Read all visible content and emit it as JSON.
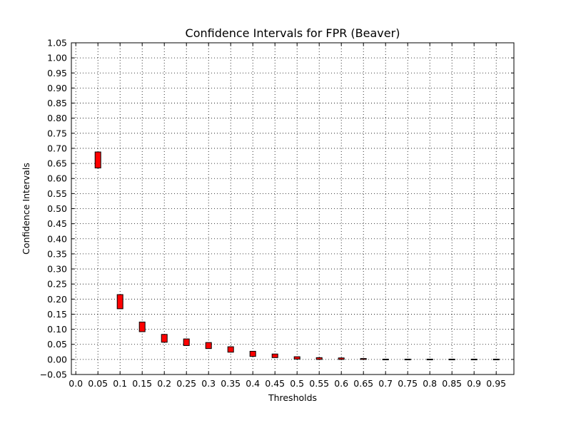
{
  "chart_data": {
    "type": "bar",
    "title": "Confidence Intervals for FPR (Beaver)",
    "xlabel": "Thresholds",
    "ylabel": "Confidence Intervals",
    "x_ticks": [
      "0.0",
      "0.05",
      "0.1",
      "0.15",
      "0.2",
      "0.25",
      "0.3",
      "0.35",
      "0.4",
      "0.45",
      "0.5",
      "0.55",
      "0.6",
      "0.65",
      "0.7",
      "0.75",
      "0.8",
      "0.85",
      "0.9",
      "0.95"
    ],
    "y_ticks": [
      "−0.05",
      "0.00",
      "0.05",
      "0.10",
      "0.15",
      "0.20",
      "0.25",
      "0.30",
      "0.35",
      "0.40",
      "0.45",
      "0.50",
      "0.55",
      "0.60",
      "0.65",
      "0.70",
      "0.75",
      "0.80",
      "0.85",
      "0.90",
      "0.95",
      "1.00",
      "1.05"
    ],
    "xlim": [
      -0.01,
      0.99
    ],
    "ylim": [
      -0.05,
      1.05
    ],
    "grid": true,
    "bar_color": "#ff0000",
    "series": [
      {
        "x": [
          0.05,
          0.1,
          0.15,
          0.2,
          0.25,
          0.3,
          0.35,
          0.4,
          0.45,
          0.5,
          0.55,
          0.6,
          0.65,
          0.7,
          0.75,
          0.8,
          0.85,
          0.9,
          0.95
        ],
        "lower": [
          0.635,
          0.168,
          0.092,
          0.057,
          0.046,
          0.036,
          0.024,
          0.01,
          0.006,
          0.001,
          0.0,
          0.0,
          0.0,
          0.0,
          0.0,
          0.0,
          0.0,
          0.0,
          0.0
        ],
        "upper": [
          0.688,
          0.215,
          0.124,
          0.083,
          0.068,
          0.056,
          0.042,
          0.027,
          0.018,
          0.009,
          0.006,
          0.005,
          0.003,
          0.001,
          0.001,
          0.001,
          0.001,
          0.001,
          0.001
        ]
      }
    ]
  }
}
